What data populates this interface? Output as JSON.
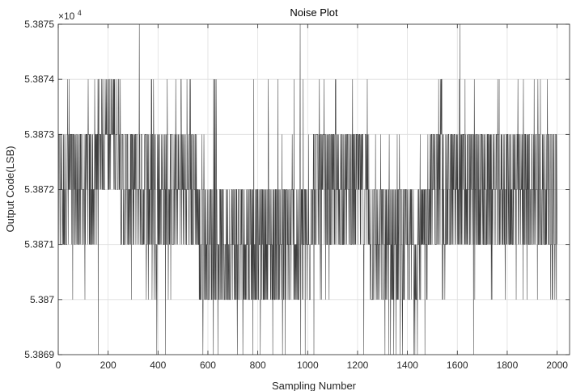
{
  "chart_data": {
    "type": "line",
    "title": "Noise Plot",
    "xlabel": "Sampling Number",
    "ylabel": "Output Code(LSB)",
    "y_multiplier": "×10",
    "y_multiplier_exponent": "4",
    "xlim": [
      0,
      2050
    ],
    "ylim": [
      53869,
      53875
    ],
    "x_ticks": [
      0,
      200,
      400,
      600,
      800,
      1000,
      1200,
      1400,
      1600,
      1800,
      2000
    ],
    "x_tick_labels": [
      "0",
      "200",
      "400",
      "600",
      "800",
      "1000",
      "1200",
      "1400",
      "1600",
      "1800",
      "2000"
    ],
    "y_ticks": [
      53869,
      53870,
      53871,
      53872,
      53873,
      53874,
      53875
    ],
    "y_tick_labels": [
      "5.3869",
      "5.387",
      "5.3871",
      "5.3872",
      "5.3873",
      "5.3874",
      "5.3875"
    ],
    "grid": true,
    "line_color": "#3f3f3f",
    "series": [
      {
        "sample_count": 2000,
        "x_start": 1,
        "x_end": 2000,
        "typical_band": [
          53871,
          53873
        ],
        "segments": [
          {
            "x_range": [
              1,
              155
            ],
            "dominant_range": [
              53871,
              53873
            ],
            "occasional": [
              53870,
              53874
            ]
          },
          {
            "x_range": [
              156,
              250
            ],
            "dominant_range": [
              53872,
              53874
            ],
            "occasional": [
              53873
            ]
          },
          {
            "x_range": [
              251,
              560
            ],
            "dominant_range": [
              53871,
              53873
            ],
            "occasional": [
              53870,
              53874
            ]
          },
          {
            "x_range": [
              561,
              1010
            ],
            "dominant_range": [
              53870,
              53872
            ],
            "occasional": [
              53869,
              53873,
              53874
            ]
          },
          {
            "x_range": [
              1011,
              1250
            ],
            "dominant_range": [
              53871,
              53873
            ],
            "occasional": [
              53870,
              53874
            ]
          },
          {
            "x_range": [
              1251,
              1480
            ],
            "dominant_range": [
              53870,
              53872
            ],
            "occasional": [
              53869,
              53873
            ]
          },
          {
            "x_range": [
              1481,
              1650
            ],
            "dominant_range": [
              53871,
              53873
            ],
            "occasional": [
              53870,
              53874
            ]
          },
          {
            "x_range": [
              1651,
              2000
            ],
            "dominant_range": [
              53871,
              53873
            ],
            "occasional": [
              53870,
              53874
            ]
          }
        ],
        "spikes": [
          {
            "x": 160,
            "y": 53869
          },
          {
            "x": 325,
            "y": 53875
          },
          {
            "x": 395,
            "y": 53869
          },
          {
            "x": 430,
            "y": 53869
          },
          {
            "x": 780,
            "y": 53869
          },
          {
            "x": 810,
            "y": 53869
          },
          {
            "x": 860,
            "y": 53869
          },
          {
            "x": 970,
            "y": 53875
          },
          {
            "x": 1025,
            "y": 53869
          },
          {
            "x": 1225,
            "y": 53869
          },
          {
            "x": 1310,
            "y": 53869
          },
          {
            "x": 1325,
            "y": 53869
          },
          {
            "x": 1345,
            "y": 53869
          },
          {
            "x": 1440,
            "y": 53869
          },
          {
            "x": 1470,
            "y": 53869
          },
          {
            "x": 1610,
            "y": 53875
          },
          {
            "x": 1665,
            "y": 53869
          }
        ]
      }
    ]
  }
}
